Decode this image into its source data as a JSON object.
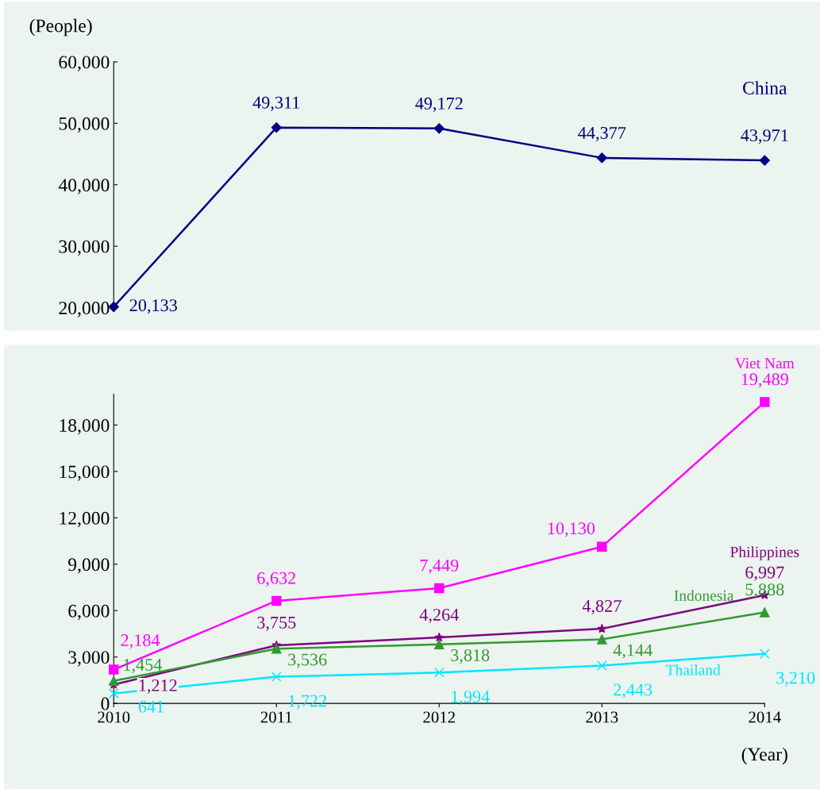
{
  "chart_data": [
    {
      "type": "line",
      "ylabel": "(People)",
      "categories": [
        "2010",
        "2011",
        "2012",
        "2013",
        "2014"
      ],
      "tick_labels": "y",
      "ylim": [
        20000,
        60000
      ],
      "yticks": [
        {
          "value": 20000,
          "label": "20,000"
        },
        {
          "value": 30000,
          "label": "30,000"
        },
        {
          "value": 40000,
          "label": "40,000"
        },
        {
          "value": 50000,
          "label": "50,000"
        },
        {
          "value": 60000,
          "label": "60,000"
        }
      ],
      "grid": false,
      "legend": false,
      "line_style": "solid",
      "series": [
        {
          "name": "China",
          "color": "#000080",
          "marker": "diamond",
          "values": [
            20133,
            49311,
            49172,
            44377,
            43971
          ],
          "value_labels": [
            "20,133",
            "49,311",
            "49,172",
            "44,377",
            "43,971"
          ]
        }
      ]
    },
    {
      "type": "line",
      "xlabel": "(Year)",
      "categories": [
        "2010",
        "2011",
        "2012",
        "2013",
        "2014"
      ],
      "ylim": [
        0,
        20000
      ],
      "yticks": [
        0,
        {
          "value": 3000,
          "label": "3,000"
        },
        {
          "value": 6000,
          "label": "6,000"
        },
        {
          "value": 9000,
          "label": "9,000"
        },
        {
          "value": 12000,
          "label": "12,000"
        },
        {
          "value": 15000,
          "label": "15,000"
        },
        {
          "value": 18000,
          "label": "18,000"
        }
      ],
      "grid": false,
      "legend": false,
      "line_style": "solid",
      "series": [
        {
          "name": "Viet Nam",
          "color": "#ff00ff",
          "marker": "square",
          "values": [
            2184,
            6632,
            7449,
            10130,
            19489
          ],
          "value_labels": [
            "2,184",
            "6,632",
            "7,449",
            "10,130",
            "19,489"
          ]
        },
        {
          "name": "Philippines",
          "color": "#800080",
          "marker": "star",
          "values": [
            1212,
            3755,
            4264,
            4827,
            6997
          ],
          "value_labels": [
            "1,212",
            "3,755",
            "4,264",
            "4,827",
            "6,997"
          ]
        },
        {
          "name": "Indonesia",
          "color": "#339933",
          "marker": "triangle",
          "values": [
            1454,
            3536,
            3818,
            4144,
            5888
          ],
          "value_labels": [
            "1,454",
            "3,536",
            "3,818",
            "4,144",
            "5,888"
          ]
        },
        {
          "name": "Thailand",
          "color": "#00e5ff",
          "marker": "cross",
          "values": [
            641,
            1722,
            1994,
            2443,
            3210
          ],
          "value_labels": [
            "641",
            "1,722",
            "1,994",
            "2,443",
            "3,210"
          ]
        }
      ]
    }
  ]
}
